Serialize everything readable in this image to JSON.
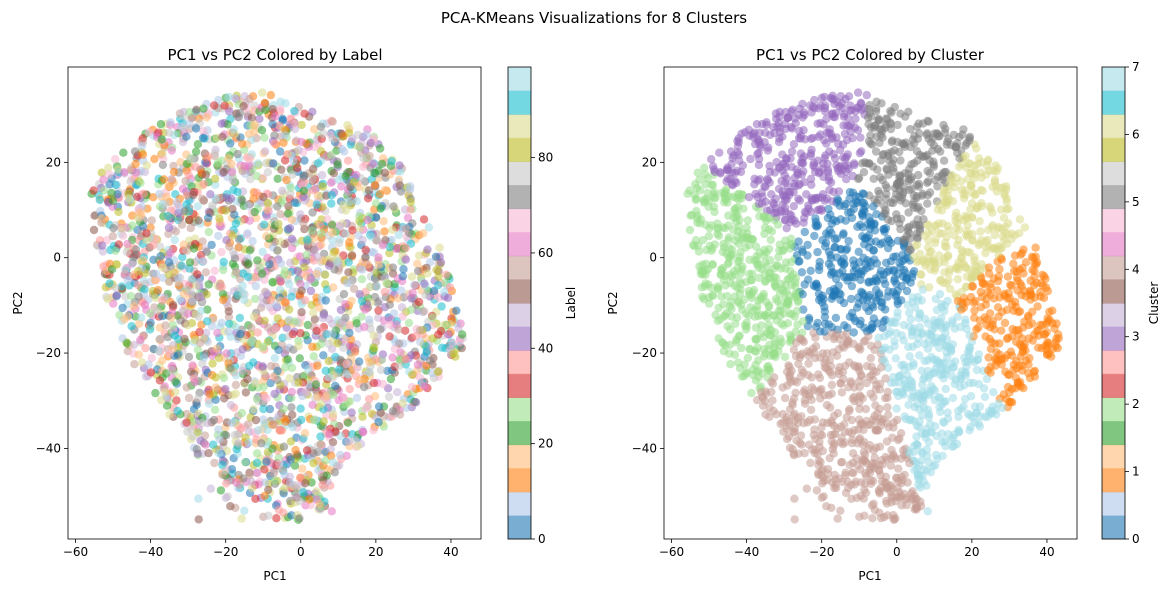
{
  "suptitle": "PCA-KMeans Visualizations for 8 Clusters",
  "palette": [
    "#1f77b4",
    "#aec7e8",
    "#ff7f0e",
    "#ffbb78",
    "#2ca02c",
    "#98df8a",
    "#d62728",
    "#ff9896",
    "#9467bd",
    "#c5b0d5",
    "#8c564b",
    "#c49c94",
    "#e377c2",
    "#f7b6d2",
    "#7f7f7f",
    "#c7c7c7",
    "#bcbd22",
    "#dbdb8d",
    "#17becf",
    "#9edae5"
  ],
  "chart_data": [
    {
      "type": "scatter",
      "title": "PC1 vs PC2 Colored by Label",
      "xlabel": "PC1",
      "ylabel": "PC2",
      "xlim": [
        -62,
        48
      ],
      "ylim": [
        -59,
        40
      ],
      "xticks": [
        -60,
        -40,
        -20,
        0,
        20,
        40
      ],
      "yticks": [
        -40,
        -20,
        0,
        20
      ],
      "xtick_labels": [
        "−60",
        "−40",
        "−20",
        "0",
        "20",
        "40"
      ],
      "ytick_labels": [
        "−40",
        "−20",
        "0",
        "20"
      ],
      "color_by": "Label",
      "colorbar": {
        "label": "Label",
        "range": [
          0,
          99
        ],
        "ticks": [
          0,
          20,
          40,
          60,
          80
        ],
        "tick_labels": [
          "0",
          "20",
          "40",
          "60",
          "80"
        ]
      },
      "series_note": "100 labels mixed uniformly throughout the point cloud (x≈−56…44, y≈−55…35)"
    },
    {
      "type": "scatter",
      "title": "PC1 vs PC2 Colored by Cluster",
      "xlabel": "PC1",
      "ylabel": "PC2",
      "xlim": [
        -62,
        48
      ],
      "ylim": [
        -59,
        40
      ],
      "xticks": [
        -60,
        -40,
        -20,
        0,
        20,
        40
      ],
      "yticks": [
        -40,
        -20,
        0,
        20
      ],
      "xtick_labels": [
        "−60",
        "−40",
        "−20",
        "0",
        "20",
        "40"
      ],
      "ytick_labels": [
        "−40",
        "−20",
        "0",
        "20"
      ],
      "color_by": "Cluster",
      "colorbar": {
        "label": "Cluster",
        "range": [
          0,
          7
        ],
        "ticks": [
          0,
          1,
          2,
          3,
          4,
          5,
          6,
          7
        ],
        "tick_labels": [
          "0",
          "1",
          "2",
          "3",
          "4",
          "5",
          "6",
          "7"
        ]
      },
      "clusters": [
        {
          "id": 0,
          "color": "#1f77b4",
          "x_range": [
            -24,
            2
          ],
          "y_range": [
            -13,
            13
          ]
        },
        {
          "id": 1,
          "color": "#ff7f0e",
          "x_range": [
            17,
            44
          ],
          "y_range": [
            -32,
            7
          ]
        },
        {
          "id": 2,
          "color": "#98df8a",
          "x_range": [
            -56,
            -22
          ],
          "y_range": [
            -38,
            21
          ]
        },
        {
          "id": 3,
          "color": "#9467bd",
          "x_range": [
            -45,
            -7
          ],
          "y_range": [
            7,
            35
          ]
        },
        {
          "id": 4,
          "color": "#c49c94",
          "x_range": [
            -27,
            4
          ],
          "y_range": [
            -55,
            -10
          ]
        },
        {
          "id": 5,
          "color": "#7f7f7f",
          "x_range": [
            -7,
            19
          ],
          "y_range": [
            3,
            30
          ]
        },
        {
          "id": 6,
          "color": "#dbdb8d",
          "x_range": [
            3,
            32
          ],
          "y_range": [
            -8,
            23
          ]
        },
        {
          "id": 7,
          "color": "#9edae5",
          "x_range": [
            -6,
            24
          ],
          "y_range": [
            -44,
            0
          ]
        }
      ]
    }
  ]
}
